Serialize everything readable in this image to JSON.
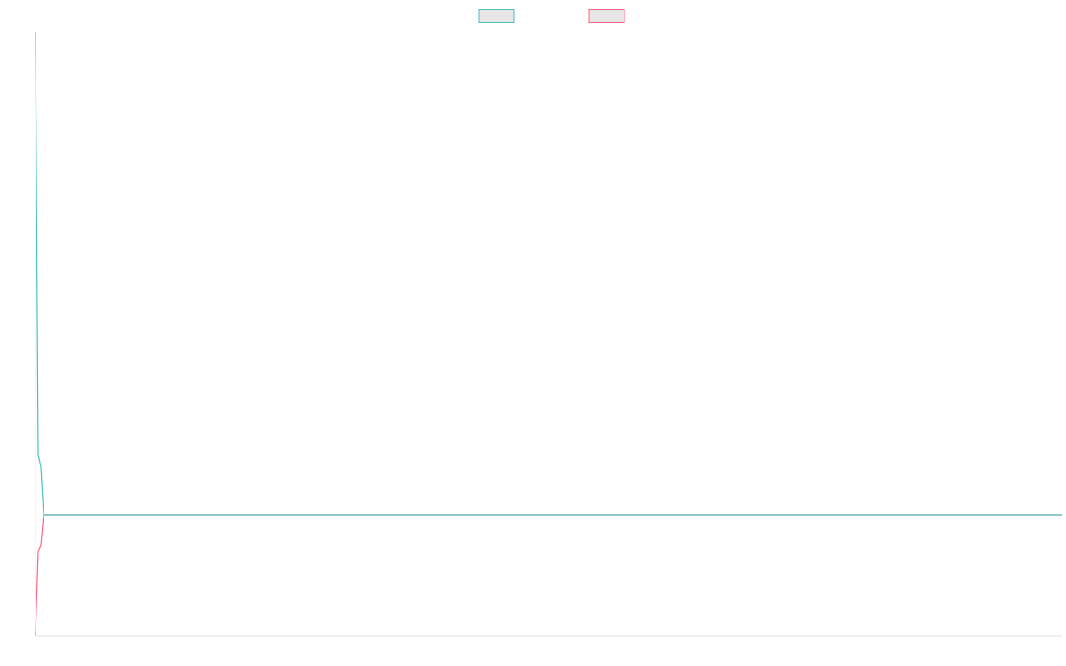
{
  "chart_data": {
    "type": "line",
    "x": [
      0,
      1,
      2,
      3,
      385
    ],
    "xlim": [
      0,
      385
    ],
    "ylim": [
      0,
      100
    ],
    "legend": "top",
    "series": [
      {
        "color": "#4bc0c0",
        "values": [
          100,
          30,
          28,
          20,
          20
        ]
      },
      {
        "color": "#ff6384",
        "values": [
          0,
          14,
          15,
          20,
          20
        ]
      }
    ]
  }
}
